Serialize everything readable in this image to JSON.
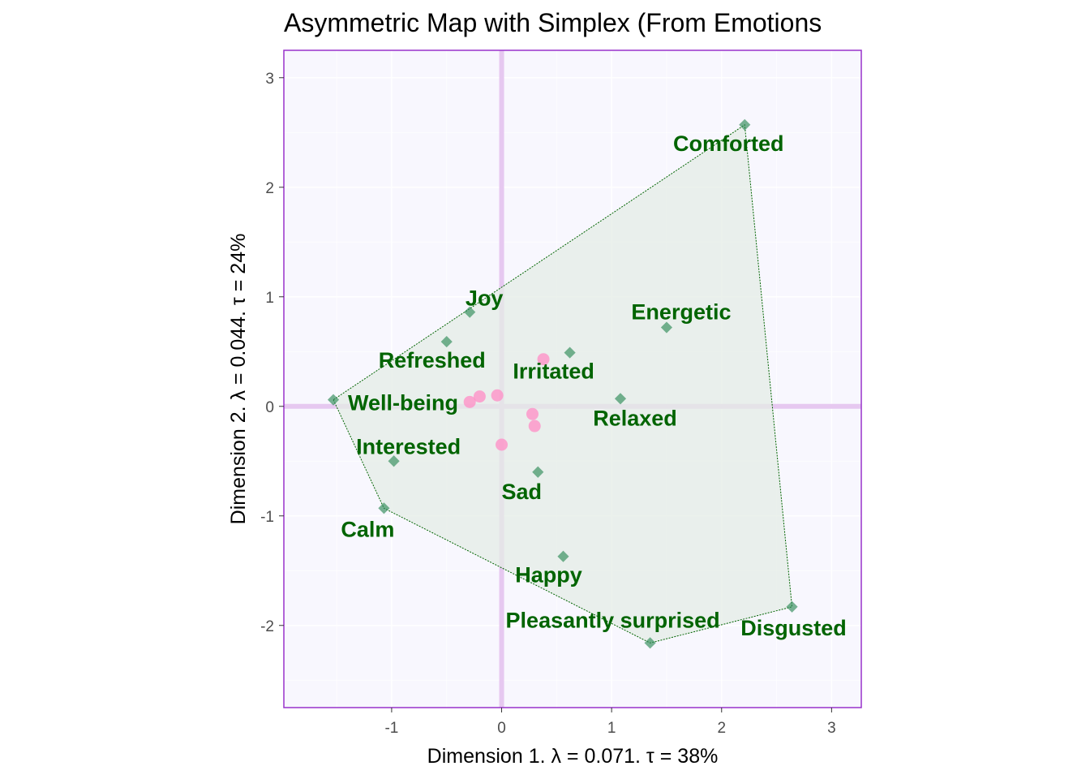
{
  "chart_data": {
    "type": "scatter",
    "title": "Asymmetric Map with Simplex (From Emotions",
    "xlabel": "Dimension 1.   λ = 0.071.  τ = 38%",
    "ylabel": "Dimension 2.   λ = 0.044.  τ = 24%",
    "xlim": [
      -1.98,
      3.27
    ],
    "ylim": [
      -2.75,
      3.25
    ],
    "xticks": [
      "-1",
      "0",
      "1",
      "2",
      "3"
    ],
    "yticks": [
      "-2",
      "-1",
      "0",
      "1",
      "2",
      "3"
    ],
    "grid": true,
    "series": [
      {
        "kind": "rows",
        "points": [
          {
            "label": "Comforted",
            "x": 2.21,
            "y": 2.57
          },
          {
            "label": "Energetic",
            "x": 1.5,
            "y": 0.72
          },
          {
            "label": "Joy",
            "x": -0.29,
            "y": 0.86
          },
          {
            "label": "Refreshed",
            "x": -0.5,
            "y": 0.59
          },
          {
            "label": "Irritated",
            "x": 0.62,
            "y": 0.49
          },
          {
            "label": "Well-being",
            "x": -1.53,
            "y": 0.06
          },
          {
            "label": "Relaxed",
            "x": 1.08,
            "y": 0.07
          },
          {
            "label": "Interested",
            "x": -0.98,
            "y": -0.5
          },
          {
            "label": "Sad",
            "x": 0.33,
            "y": -0.6
          },
          {
            "label": "Calm",
            "x": -1.07,
            "y": -0.93
          },
          {
            "label": "Happy",
            "x": 0.56,
            "y": -1.37
          },
          {
            "label": "Pleasantly surprised",
            "x": 1.35,
            "y": -2.16
          },
          {
            "label": "Disgusted",
            "x": 2.64,
            "y": -1.83
          }
        ]
      },
      {
        "kind": "columns",
        "points": [
          {
            "x": 0.38,
            "y": 0.43
          },
          {
            "x": -0.2,
            "y": 0.09
          },
          {
            "x": -0.29,
            "y": 0.04
          },
          {
            "x": -0.04,
            "y": 0.1
          },
          {
            "x": 0.28,
            "y": -0.07
          },
          {
            "x": 0.3,
            "y": -0.18
          },
          {
            "x": 0.0,
            "y": -0.35
          }
        ]
      }
    ],
    "colors": {
      "row_marker": "#2e8b57",
      "row_label": "#006400",
      "column_marker": "#ff8cc6",
      "panel_background": "#f8f7fe",
      "panel_border": "#9932cc",
      "origin_lines": "#e6c8f0",
      "simplex_fill": "#e4ece6",
      "simplex_line": "#006400"
    }
  }
}
